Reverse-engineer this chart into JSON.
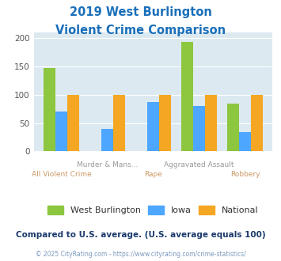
{
  "title_line1": "2019 West Burlington",
  "title_line2": "Violent Crime Comparison",
  "title_color": "#1a6fba",
  "categories_top": [
    "Murder & Mans...",
    "Aggravated Assault"
  ],
  "categories_bottom": [
    "All Violent Crime",
    "Rape",
    "Robbery"
  ],
  "west_burlington": [
    147,
    0,
    0,
    193,
    85
  ],
  "iowa": [
    70,
    40,
    87,
    80,
    34
  ],
  "national": [
    100,
    100,
    100,
    100,
    100
  ],
  "wb_color": "#8dc63f",
  "iowa_color": "#4da6ff",
  "national_color": "#f5a623",
  "ylim": [
    0,
    210
  ],
  "yticks": [
    0,
    50,
    100,
    150,
    200
  ],
  "bg_color": "#dce9f0",
  "legend_labels": [
    "West Burlington",
    "Iowa",
    "National"
  ],
  "note": "Compared to U.S. average. (U.S. average equals 100)",
  "note_color": "#1a3a6b",
  "footer": "© 2025 CityRating.com - https://www.cityrating.com/crime-statistics/",
  "footer_color": "#7a9abf"
}
